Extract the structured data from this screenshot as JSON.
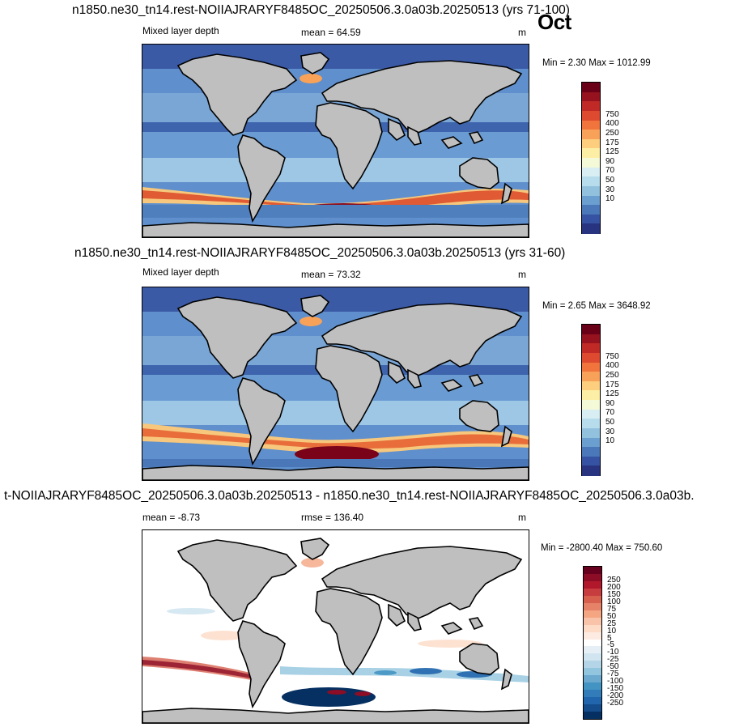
{
  "month": "Oct",
  "panels": [
    {
      "title": "n1850.ne30_tn14.rest-NOIIAJRARYF8485OC_20250506.3.0a03b.20250513 (yrs 71-100)",
      "left_label": "Mixed layer depth",
      "center_label": "mean =  64.59",
      "units": "m",
      "minmax": "Min =   2.30 Max = 1012.99",
      "colorbar": {
        "labels": [
          "750",
          "400",
          "250",
          "175",
          "125",
          "90",
          "70",
          "50",
          "30",
          "10"
        ],
        "colors": [
          "#6a0017",
          "#96121e",
          "#bf2a26",
          "#de4a2f",
          "#f0743c",
          "#f8a259",
          "#fcce7d",
          "#fdeea6",
          "#f4f9d8",
          "#d8eef3",
          "#b7dcec",
          "#92c1de",
          "#6b9fcf",
          "#4a78b8",
          "#3553a2",
          "#283480"
        ]
      }
    },
    {
      "title": "n1850.ne30_tn14.rest-NOIIAJRARYF8485OC_20250506.3.0a03b.20250513 (yrs 31-60)",
      "left_label": "Mixed layer depth",
      "center_label": "mean =  73.32",
      "units": "m",
      "minmax": "Min =   2.65 Max = 3648.92",
      "colorbar": {
        "labels": [
          "750",
          "400",
          "250",
          "175",
          "125",
          "90",
          "70",
          "50",
          "30",
          "10"
        ],
        "colors": [
          "#6a0017",
          "#96121e",
          "#bf2a26",
          "#de4a2f",
          "#f0743c",
          "#f8a259",
          "#fcce7d",
          "#fdeea6",
          "#f4f9d8",
          "#d8eef3",
          "#b7dcec",
          "#92c1de",
          "#6b9fcf",
          "#4a78b8",
          "#3553a2",
          "#283480"
        ]
      }
    },
    {
      "title": "t-NOIIAJRARYF8485OC_20250506.3.0a03b.20250513 - n1850.ne30_tn14.rest-NOIIAJRARYF8485OC_20250506.3.0a03b.",
      "left_label": "mean =  -8.73",
      "center_label": "rmse = 136.40",
      "units": "m",
      "minmax": "Min = -2800.40 Max = 750.60",
      "colorbar": {
        "labels": [
          "250",
          "200",
          "150",
          "100",
          "75",
          "50",
          "25",
          "10",
          "5",
          "-5",
          "-10",
          "-25",
          "-50",
          "-75",
          "-100",
          "-150",
          "-200",
          "-250"
        ],
        "colors": [
          "#67001f",
          "#8c0d25",
          "#b2182b",
          "#c73d3f",
          "#d6604d",
          "#e58268",
          "#f4a582",
          "#f8c3a8",
          "#fddbc7",
          "#fdebe1",
          "#ffffff",
          "#e6eff6",
          "#d1e5f0",
          "#b4d5e8",
          "#92c5de",
          "#6ba9cf",
          "#4393c3",
          "#327cb9",
          "#2166ac",
          "#144c8c",
          "#053061"
        ]
      }
    }
  ]
}
